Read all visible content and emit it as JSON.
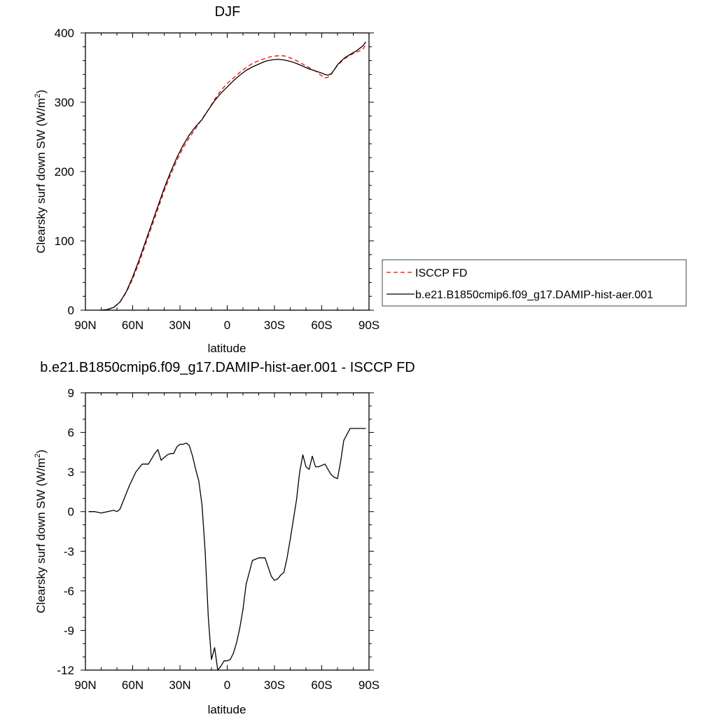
{
  "chart_data": [
    {
      "type": "line",
      "title": "DJF",
      "xlabel": "latitude",
      "ylabel": "Clearsky surf down SW (W/m",
      "ylabel_sup": "2",
      "ylabel_close": ")",
      "xlim": [
        90,
        -90
      ],
      "ylim": [
        0,
        400
      ],
      "xticks": [
        {
          "value": 90,
          "label": "90N"
        },
        {
          "value": 60,
          "label": "60N"
        },
        {
          "value": 30,
          "label": "30N"
        },
        {
          "value": 0,
          "label": "0"
        },
        {
          "value": -30,
          "label": "30S"
        },
        {
          "value": -60,
          "label": "60S"
        },
        {
          "value": -90,
          "label": "90S"
        }
      ],
      "yticks": [
        {
          "value": 0,
          "label": "0"
        },
        {
          "value": 100,
          "label": "100"
        },
        {
          "value": 200,
          "label": "200"
        },
        {
          "value": 300,
          "label": "300"
        },
        {
          "value": 400,
          "label": "400"
        }
      ],
      "series": [
        {
          "name": "ISCCP FD",
          "color": "#ff0000",
          "dash": true,
          "x": [
            80,
            76,
            72,
            68,
            64,
            60,
            56,
            52,
            48,
            44,
            40,
            36,
            32,
            28,
            24,
            20,
            16,
            12,
            8,
            4,
            0,
            -4,
            -8,
            -12,
            -16,
            -20,
            -24,
            -28,
            -32,
            -36,
            -40,
            -44,
            -48,
            -52,
            -56,
            -60,
            -62,
            -64,
            -66,
            -68,
            -70,
            -74,
            -78,
            -82,
            -86,
            -88
          ],
          "y": [
            0,
            1,
            4,
            12,
            26,
            45,
            68,
            94,
            120,
            146,
            172,
            195,
            216,
            234,
            249,
            262,
            276,
            289,
            304,
            317,
            327,
            335,
            343,
            350,
            356,
            360,
            363,
            366,
            367,
            367,
            364,
            360,
            355,
            350,
            345,
            338,
            335,
            336,
            340,
            347,
            353,
            362,
            368,
            372,
            376,
            383
          ]
        },
        {
          "name": "b.e21.B1850cmip6.f09_g17.DAMIP-hist-aer.001",
          "color": "#000000",
          "dash": false,
          "x": [
            80,
            76,
            72,
            68,
            64,
            60,
            56,
            52,
            48,
            44,
            40,
            36,
            32,
            28,
            24,
            20,
            16,
            12,
            8,
            4,
            0,
            -4,
            -8,
            -12,
            -16,
            -20,
            -24,
            -28,
            -32,
            -36,
            -40,
            -44,
            -48,
            -52,
            -56,
            -60,
            -62,
            -64,
            -66,
            -68,
            -70,
            -74,
            -78,
            -82,
            -86,
            -88
          ],
          "y": [
            0,
            1,
            4,
            12,
            27,
            48,
            72,
            98,
            124,
            150,
            176,
            199,
            220,
            238,
            253,
            265,
            275,
            289,
            302,
            313,
            322,
            331,
            339,
            346,
            351,
            355,
            359,
            361,
            362,
            361,
            359,
            356,
            352,
            348,
            345,
            342,
            340,
            339,
            341,
            347,
            354,
            363,
            369,
            374,
            381,
            387
          ]
        }
      ],
      "legend": {
        "placement": "right"
      }
    },
    {
      "type": "line",
      "title": "b.e21.B1850cmip6.f09_g17.DAMIP-hist-aer.001 - ISCCP FD",
      "xlabel": "latitude",
      "ylabel": "Clearsky surf down SW (W/m",
      "ylabel_sup": "2",
      "ylabel_close": ")",
      "xlim": [
        90,
        -90
      ],
      "ylim": [
        -12,
        9
      ],
      "xticks": [
        {
          "value": 90,
          "label": "90N"
        },
        {
          "value": 60,
          "label": "60N"
        },
        {
          "value": 30,
          "label": "30N"
        },
        {
          "value": 0,
          "label": "0"
        },
        {
          "value": -30,
          "label": "30S"
        },
        {
          "value": -60,
          "label": "60S"
        },
        {
          "value": -90,
          "label": "90S"
        }
      ],
      "yticks": [
        {
          "value": 9,
          "label": "9"
        },
        {
          "value": 6,
          "label": "6"
        },
        {
          "value": 3,
          "label": "3"
        },
        {
          "value": 0,
          "label": "0"
        },
        {
          "value": -3,
          "label": "-3"
        },
        {
          "value": -6,
          "label": "-6"
        },
        {
          "value": -9,
          "label": "-9"
        },
        {
          "value": -12,
          "label": "-12"
        }
      ],
      "series": [
        {
          "color": "#000000",
          "x": [
            88,
            84,
            80,
            76,
            72,
            70,
            68,
            66,
            62,
            58,
            56,
            54,
            50,
            48,
            46,
            44,
            42,
            40,
            38,
            36,
            34,
            32,
            30,
            28,
            26,
            24,
            22,
            20,
            18,
            16,
            14,
            12,
            10,
            8,
            6,
            4,
            2,
            0,
            -2,
            -4,
            -6,
            -8,
            -10,
            -12,
            -14,
            -16,
            -18,
            -20,
            -24,
            -28,
            -30,
            -32,
            -34,
            -36,
            -38,
            -40,
            -42,
            -44,
            -46,
            -48,
            -50,
            -52,
            -54,
            -56,
            -58,
            -60,
            -62,
            -64,
            -66,
            -68,
            -70,
            -72,
            -74,
            -78,
            -82,
            -84,
            -86,
            -88
          ],
          "y": [
            0,
            0,
            -0.1,
            0,
            0.1,
            0,
            0.2,
            0.8,
            2,
            3,
            3.3,
            3.6,
            3.6,
            4,
            4.4,
            4.7,
            3.9,
            4.1,
            4.3,
            4.4,
            4.4,
            4.9,
            5.1,
            5.1,
            5.2,
            5.0,
            4.2,
            3.2,
            2.3,
            0.5,
            -3,
            -8,
            -11.2,
            -10.3,
            -12.0,
            -11.7,
            -11.3,
            -11.3,
            -11.2,
            -10.7,
            -9.9,
            -8.8,
            -7.4,
            -5.5,
            -4.6,
            -3.7,
            -3.6,
            -3.5,
            -3.5,
            -4.9,
            -5.2,
            -5.1,
            -4.8,
            -4.6,
            -3.5,
            -2.1,
            -0.6,
            0.9,
            3.0,
            4.3,
            3.4,
            3.2,
            4.2,
            3.4,
            3.4,
            3.5,
            3.6,
            3.2,
            2.8,
            2.6,
            2.5,
            3.8,
            5.4,
            6.3,
            6.3,
            6.3,
            6.3,
            6.3
          ]
        }
      ]
    }
  ]
}
